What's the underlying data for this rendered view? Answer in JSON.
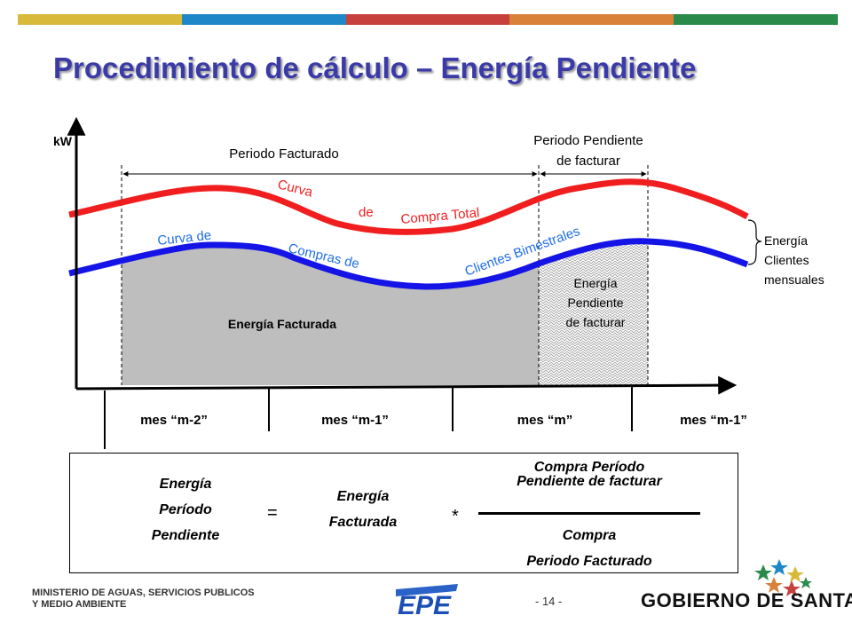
{
  "slide": {
    "title": "Procedimiento de cálculo – Energía Pendiente",
    "top_bar_colors": [
      "#d9b93a",
      "#1e87c8",
      "#c8403c",
      "#d9813a",
      "#2a8a4a"
    ],
    "page_number": "- 14 -"
  },
  "diagram": {
    "y_axis_label": "kW",
    "periodo_facturado": "Periodo Facturado",
    "periodo_pendiente_line1": "Periodo Pendiente",
    "periodo_pendiente_line2": "de facturar",
    "red_curve_words": [
      "Curva",
      "de",
      "Compra Total"
    ],
    "blue_curve_words": [
      "Curva de",
      "Compras de",
      "Clientes Bimestrales"
    ],
    "energia_facturada": "Energía Facturada",
    "energia_pendiente_lines": [
      "Energía",
      "Pendiente",
      "de facturar"
    ],
    "energia_clientes_lines": [
      "Energía",
      "Clientes",
      "mensuales"
    ],
    "months": [
      "mes “m-2”",
      "mes “m-1”",
      "mes “m”",
      "mes “m-1”"
    ],
    "colors": {
      "red_curve": "#f01e1e",
      "blue_curve": "#1414e6",
      "red_text": "#f01e1e",
      "blue_text": "#1e6ee6",
      "area_gray": "#bebebe"
    }
  },
  "formula": {
    "left_lines": [
      "Energía",
      "Período",
      "Pendiente"
    ],
    "equals": "=",
    "middle_lines": [
      "Energía",
      "Facturada"
    ],
    "times": "*",
    "numerator_lines": [
      "Compra Período",
      "Pendiente de facturar"
    ],
    "denominator_lines": [
      "Compra",
      "Periodo Facturado"
    ]
  },
  "footer": {
    "ministry_line1": "MINISTERIO DE AGUAS, SERVICIOS PUBLICOS",
    "ministry_line2": "Y MEDIO AMBIENTE",
    "epe_logo": "EPE",
    "gobierno": "GOBIERNO DE SANTA FE"
  }
}
